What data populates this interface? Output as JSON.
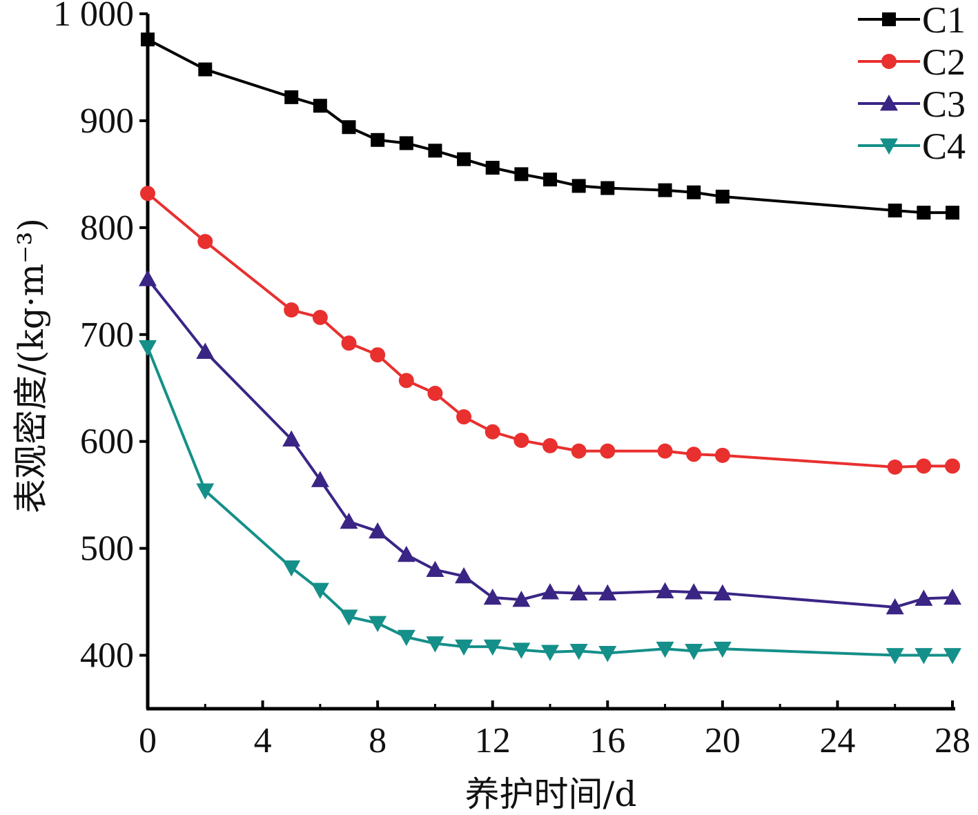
{
  "chart_data": {
    "type": "line",
    "xlabel": "养护时间/d",
    "ylabel": "表观密度/(kg·m⁻³)",
    "xlim": [
      0,
      28
    ],
    "ylim": [
      350,
      1000
    ],
    "xticks": [
      0,
      4,
      8,
      12,
      16,
      20,
      24,
      28
    ],
    "xtick_labels": [
      "0",
      "4",
      "8",
      "12",
      "16",
      "20",
      "24",
      "28"
    ],
    "yticks": [
      400,
      500,
      600,
      700,
      800,
      900,
      1000
    ],
    "ytick_labels": [
      "400",
      "500",
      "600",
      "700",
      "800",
      "900",
      "1 000"
    ],
    "grid": false,
    "legend_position": "top-right",
    "x": [
      0,
      2,
      5,
      6,
      7,
      8,
      9,
      10,
      11,
      12,
      13,
      14,
      15,
      16,
      18,
      19,
      20,
      26,
      27,
      28
    ],
    "series": [
      {
        "name": "C1",
        "color": "#000000",
        "marker": "square",
        "values": [
          976,
          948,
          922,
          914,
          894,
          882,
          879,
          872,
          864,
          856,
          850,
          845,
          839,
          837,
          835,
          833,
          829,
          816,
          814,
          814
        ]
      },
      {
        "name": "C2",
        "color": "#e8302f",
        "marker": "circle",
        "values": [
          832,
          787,
          723,
          716,
          692,
          681,
          657,
          645,
          623,
          609,
          601,
          596,
          591,
          591,
          591,
          588,
          587,
          576,
          577,
          577
        ]
      },
      {
        "name": "C3",
        "color": "#3a2585",
        "marker": "triangle-up",
        "values": [
          752,
          684,
          602,
          564,
          525,
          516,
          494,
          480,
          474,
          454,
          452,
          459,
          458,
          458,
          460,
          459,
          458,
          445,
          453,
          454
        ]
      },
      {
        "name": "C4",
        "color": "#148f89",
        "marker": "triangle-down",
        "values": [
          688,
          554,
          482,
          461,
          436,
          430,
          417,
          411,
          408,
          408,
          405,
          403,
          404,
          402,
          406,
          404,
          406,
          400,
          400,
          400
        ]
      }
    ]
  }
}
